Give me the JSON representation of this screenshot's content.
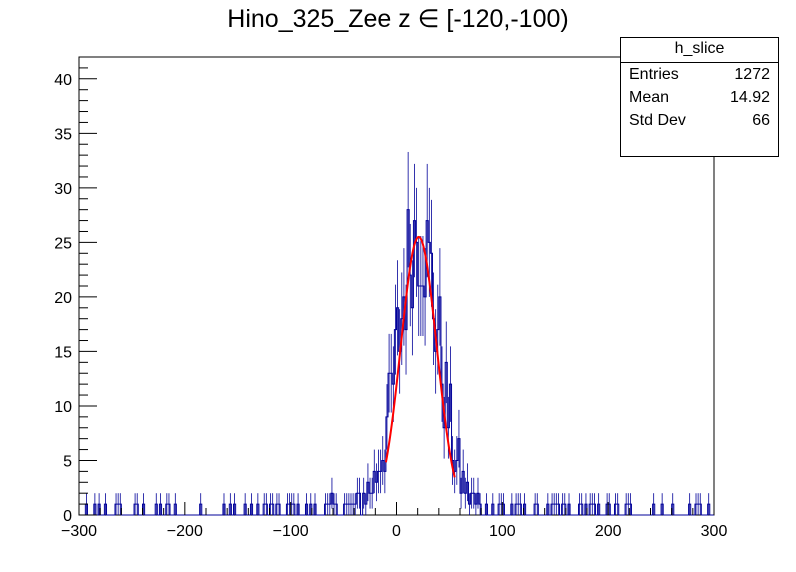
{
  "chart_data": {
    "type": "histogram",
    "title": "Hino_325_Zee z  ∈ [-120,-100)",
    "xlim": [
      -300,
      300
    ],
    "ylim": [
      0,
      42
    ],
    "xticks": [
      -300,
      -200,
      -100,
      0,
      100,
      200,
      300
    ],
    "yticks": [
      0,
      5,
      10,
      15,
      20,
      25,
      30,
      35,
      40
    ],
    "bin_width": 2,
    "hist_color": "#000099",
    "fit_color": "#ff0000",
    "stats": {
      "name": "h_slice",
      "rows": [
        {
          "label": "Entries",
          "value": "1272"
        },
        {
          "label": "Mean",
          "value": "14.92"
        },
        {
          "label": "Std Dev",
          "value": "66"
        }
      ]
    },
    "fit": {
      "type": "gaussian",
      "amplitude": 25.5,
      "mean": 21,
      "sigma": 17,
      "range": [
        -10,
        55
      ]
    },
    "notes": "Approximately 300 bins of width 2 from -300 to 300; counts generated to follow the depicted shape."
  }
}
